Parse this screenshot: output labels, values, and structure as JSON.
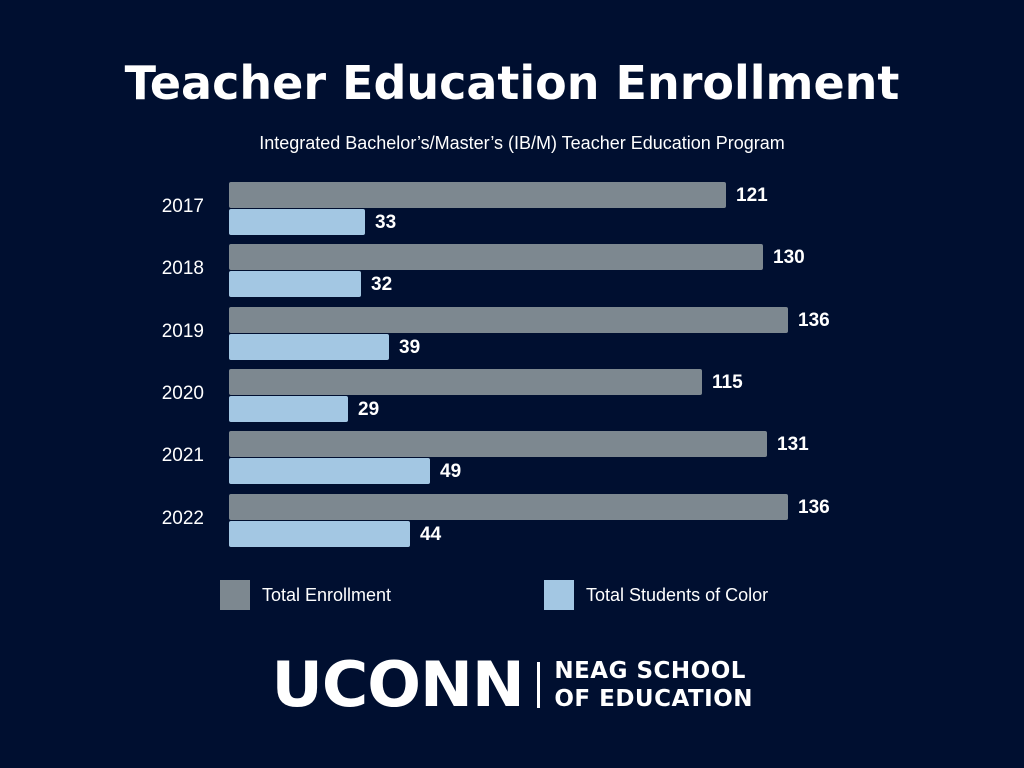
{
  "header": {
    "title": "Teacher Education Enrollment",
    "subtitle": "Integrated Bachelor’s/Master’s (IB/M) Teacher Education Program"
  },
  "legend": {
    "total_label": "Total Enrollment",
    "color_label": "Total Students of Color"
  },
  "logo": {
    "primary": "UCONN",
    "line1": "NEAG SCHOOL",
    "line2": "OF EDUCATION"
  },
  "colors": {
    "background": "#000f30",
    "total": "#7d8890",
    "students_of_color": "#a3c7e3"
  },
  "chart_data": {
    "type": "bar",
    "orientation": "horizontal",
    "title": "Teacher Education Enrollment",
    "subtitle": "Integrated Bachelor’s/Master’s (IB/M) Teacher Education Program",
    "categories": [
      "2017",
      "2018",
      "2019",
      "2020",
      "2021",
      "2022"
    ],
    "series": [
      {
        "name": "Total Enrollment",
        "values": [
          121,
          130,
          136,
          115,
          131,
          136
        ],
        "color": "#7d8890"
      },
      {
        "name": "Total Students of Color",
        "values": [
          33,
          32,
          39,
          29,
          49,
          44
        ],
        "color": "#a3c7e3"
      }
    ],
    "xlabel": "",
    "ylabel": "",
    "grid": false,
    "data_labels": true,
    "legend_position": "bottom"
  }
}
